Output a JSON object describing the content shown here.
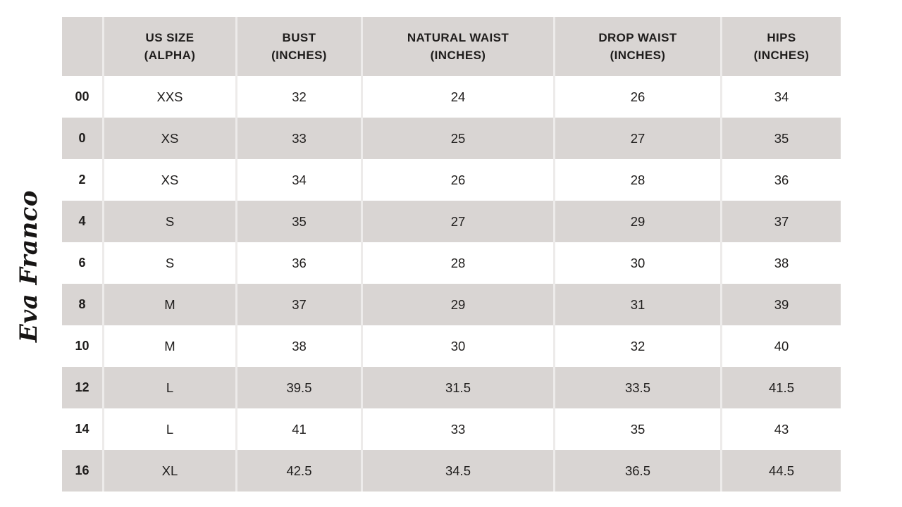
{
  "brand": {
    "logo_text": "Eva Franco"
  },
  "chart_data": {
    "type": "table",
    "columns": [
      {
        "line1": "",
        "line2": ""
      },
      {
        "line1": "US SIZE",
        "line2": "(ALPHA)"
      },
      {
        "line1": "BUST",
        "line2": "(INCHES)"
      },
      {
        "line1": "NATURAL WAIST",
        "line2": "(INCHES)"
      },
      {
        "line1": "DROP WAIST",
        "line2": "(INCHES)"
      },
      {
        "line1": "HIPS",
        "line2": "(INCHES)"
      }
    ],
    "rows": [
      {
        "cells": [
          "00",
          "XXS",
          "32",
          "24",
          "26",
          "34"
        ]
      },
      {
        "cells": [
          "0",
          "XS",
          "33",
          "25",
          "27",
          "35"
        ]
      },
      {
        "cells": [
          "2",
          "XS",
          "34",
          "26",
          "28",
          "36"
        ]
      },
      {
        "cells": [
          "4",
          "S",
          "35",
          "27",
          "29",
          "37"
        ]
      },
      {
        "cells": [
          "6",
          "S",
          "36",
          "28",
          "30",
          "38"
        ]
      },
      {
        "cells": [
          "8",
          "M",
          "37",
          "29",
          "31",
          "39"
        ]
      },
      {
        "cells": [
          "10",
          "M",
          "38",
          "30",
          "32",
          "40"
        ]
      },
      {
        "cells": [
          "12",
          "L",
          "39.5",
          "31.5",
          "33.5",
          "41.5"
        ]
      },
      {
        "cells": [
          "14",
          "L",
          "41",
          "33",
          "35",
          "43"
        ]
      },
      {
        "cells": [
          "16",
          "XL",
          "42.5",
          "34.5",
          "36.5",
          "44.5"
        ]
      }
    ]
  },
  "colors": {
    "stripe_gray": "#d9d5d3",
    "grid_line": "#edebea",
    "text": "#1f1d1c",
    "background": "#ffffff"
  }
}
